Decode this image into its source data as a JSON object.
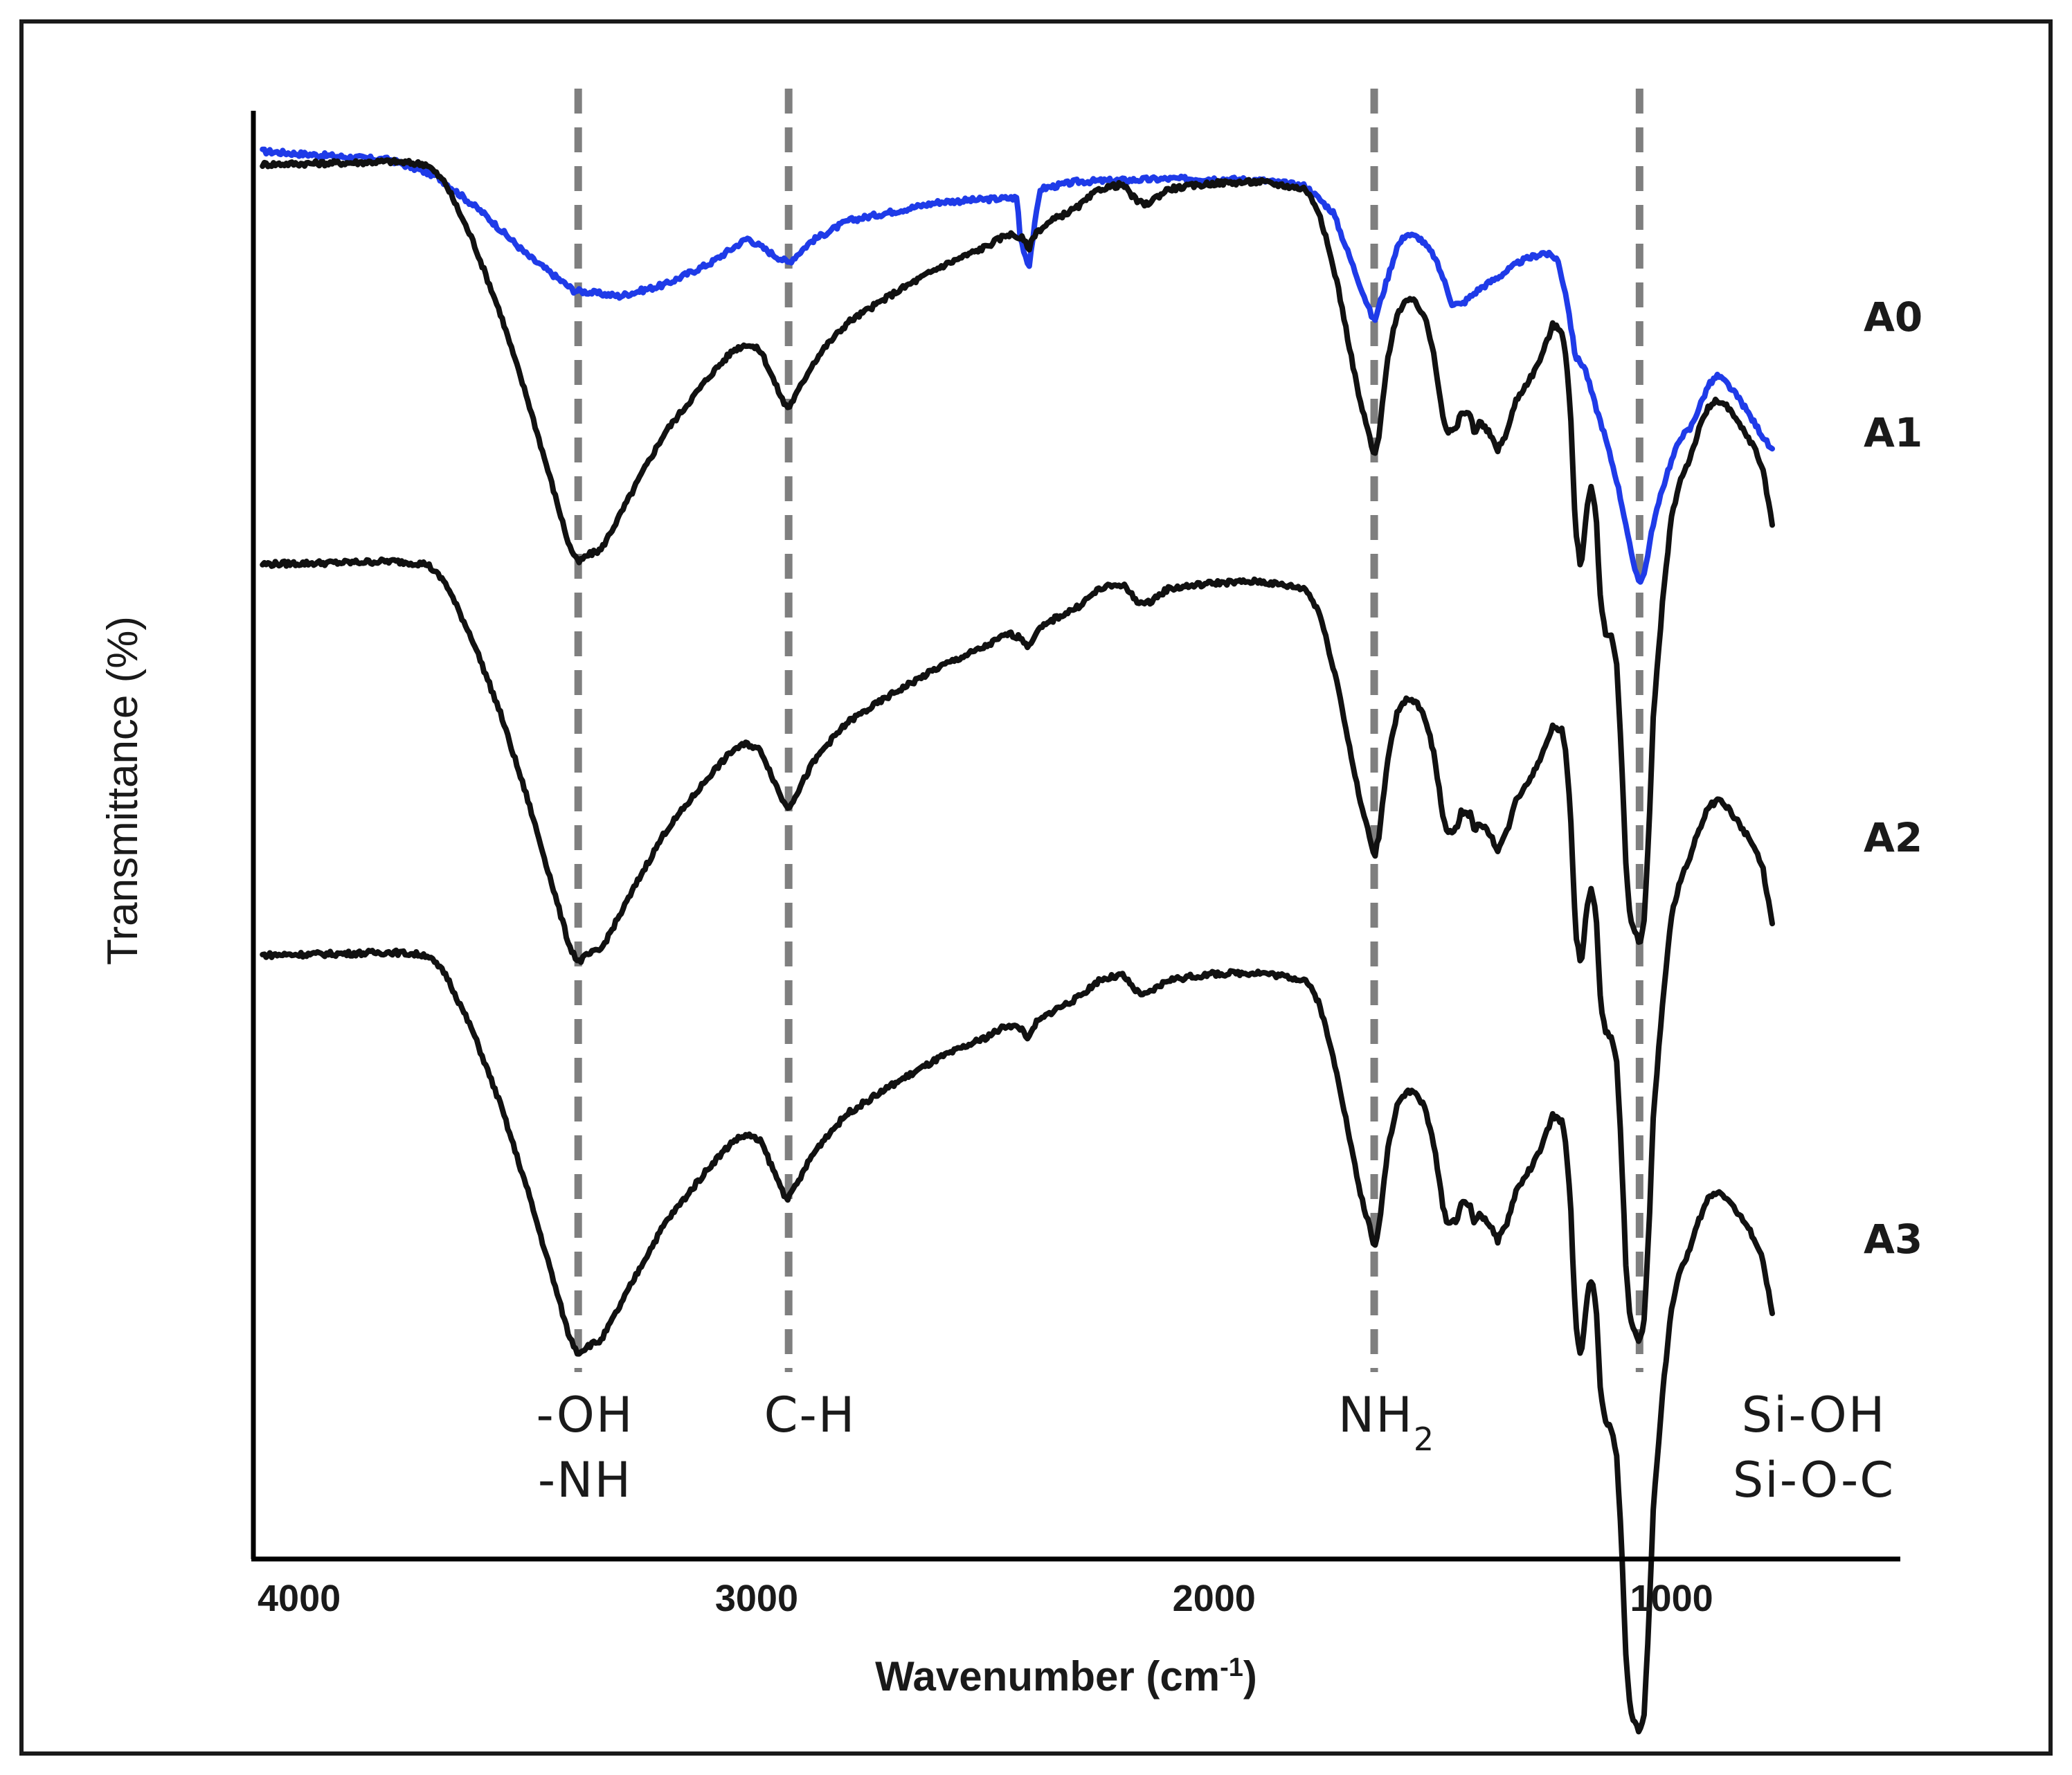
{
  "chart_data": {
    "type": "line",
    "title": "",
    "xlabel": "Wavenumber (cm",
    "xlabel_sup": "-1",
    "xlabel_end": ")",
    "ylabel": "Transmittance (%)",
    "xlim": [
      4100,
      500
    ],
    "x_reversed": true,
    "ylim": [
      0,
      100
    ],
    "ticks": [
      "4000",
      "3000",
      "2000",
      "1000"
    ],
    "tick_values": [
      4000,
      3000,
      2000,
      1000
    ],
    "grid": false,
    "legend": "labels at right end of each trace",
    "colors": {
      "A0": "#1f3be8",
      "A1": "#111111",
      "A2": "#111111",
      "A3": "#111111",
      "reference": "#7f7f7f"
    },
    "reference_lines": [
      3390,
      2930,
      1650,
      1070
    ],
    "annotations": [
      {
        "line1": "-OH",
        "line2": "-NH",
        "x": 3390
      },
      {
        "line1": "C-H",
        "line2": "",
        "x": 2930
      },
      {
        "line1": "NH",
        "sub": "2",
        "x": 1650
      },
      {
        "line1": "Si-OH",
        "line2": "Si-O-C",
        "x": 1070
      }
    ],
    "series": [
      {
        "name": "A0",
        "color": "#1f3be8",
        "offset": 0,
        "points": [
          [
            4080,
            97.2
          ],
          [
            3800,
            96.6
          ],
          [
            3700,
            95.5
          ],
          [
            3600,
            93
          ],
          [
            3500,
            90
          ],
          [
            3400,
            87.6
          ],
          [
            3300,
            87.2
          ],
          [
            3200,
            88
          ],
          [
            3100,
            89.5
          ],
          [
            3020,
            91.2
          ],
          [
            2960,
            90
          ],
          [
            2930,
            89.5
          ],
          [
            2880,
            91
          ],
          [
            2800,
            92.4
          ],
          [
            2600,
            93.7
          ],
          [
            2430,
            94
          ],
          [
            2425,
            91.4
          ],
          [
            2405,
            89.2
          ],
          [
            2395,
            91.5
          ],
          [
            2380,
            94.6
          ],
          [
            2300,
            95.1
          ],
          [
            2200,
            95.2
          ],
          [
            2100,
            95.3
          ],
          [
            2000,
            95.3
          ],
          [
            1900,
            95.2
          ],
          [
            1800,
            94.8
          ],
          [
            1740,
            93
          ],
          [
            1700,
            89.6
          ],
          [
            1660,
            86.2
          ],
          [
            1650,
            85.4
          ],
          [
            1630,
            87.5
          ],
          [
            1600,
            90.6
          ],
          [
            1580,
            91.5
          ],
          [
            1550,
            91.2
          ],
          [
            1520,
            90
          ],
          [
            1500,
            88.5
          ],
          [
            1480,
            86.7
          ],
          [
            1460,
            86.6
          ],
          [
            1420,
            87.7
          ],
          [
            1380,
            88.5
          ],
          [
            1330,
            89.6
          ],
          [
            1280,
            90.2
          ],
          [
            1250,
            89.8
          ],
          [
            1230,
            87.2
          ],
          [
            1210,
            83
          ],
          [
            1190,
            82.3
          ],
          [
            1170,
            80
          ],
          [
            1150,
            78
          ],
          [
            1120,
            74.5
          ],
          [
            1100,
            71.5
          ],
          [
            1085,
            68.8
          ],
          [
            1070,
            67.5
          ],
          [
            1060,
            68
          ],
          [
            1040,
            71.5
          ],
          [
            1010,
            75
          ],
          [
            980,
            77.5
          ],
          [
            960,
            78
          ],
          [
            940,
            79.5
          ],
          [
            920,
            81
          ],
          [
            900,
            81.7
          ],
          [
            880,
            81.2
          ],
          [
            850,
            80
          ],
          [
            820,
            78.5
          ],
          [
            780,
            76.5
          ]
        ]
      },
      {
        "name": "A1",
        "color": "#111111",
        "offset": 0,
        "points": [
          [
            4080,
            96.3
          ],
          [
            3900,
            96.4
          ],
          [
            3800,
            96.5
          ],
          [
            3720,
            96.3
          ],
          [
            3680,
            95
          ],
          [
            3620,
            91
          ],
          [
            3560,
            86
          ],
          [
            3500,
            80
          ],
          [
            3450,
            74.5
          ],
          [
            3410,
            70
          ],
          [
            3390,
            68.8
          ],
          [
            3370,
            69.3
          ],
          [
            3340,
            69.7
          ],
          [
            3300,
            72
          ],
          [
            3250,
            75
          ],
          [
            3200,
            77.8
          ],
          [
            3100,
            81.8
          ],
          [
            3050,
            83.5
          ],
          [
            3020,
            83.9
          ],
          [
            2990,
            83.4
          ],
          [
            2960,
            81.2
          ],
          [
            2940,
            79.8
          ],
          [
            2930,
            79.5
          ],
          [
            2910,
            80.6
          ],
          [
            2880,
            82.4
          ],
          [
            2850,
            83.7
          ],
          [
            2800,
            85.4
          ],
          [
            2700,
            87.4
          ],
          [
            2600,
            89.2
          ],
          [
            2500,
            90.6
          ],
          [
            2450,
            91.5
          ],
          [
            2420,
            91.2
          ],
          [
            2405,
            90.5
          ],
          [
            2390,
            91.6
          ],
          [
            2350,
            92.5
          ],
          [
            2300,
            93.3
          ],
          [
            2250,
            94.6
          ],
          [
            2220,
            94.8
          ],
          [
            2200,
            94.9
          ],
          [
            2170,
            93.8
          ],
          [
            2150,
            93.5
          ],
          [
            2100,
            94.6
          ],
          [
            2000,
            95
          ],
          [
            1900,
            95.1
          ],
          [
            1800,
            94.6
          ],
          [
            1770,
            93
          ],
          [
            1730,
            88
          ],
          [
            1700,
            83
          ],
          [
            1680,
            79.8
          ],
          [
            1660,
            77.5
          ],
          [
            1650,
            76
          ],
          [
            1640,
            77.5
          ],
          [
            1620,
            83
          ],
          [
            1600,
            86
          ],
          [
            1580,
            86.9
          ],
          [
            1560,
            86.8
          ],
          [
            1540,
            85.8
          ],
          [
            1520,
            83.3
          ],
          [
            1500,
            79
          ],
          [
            1490,
            77.8
          ],
          [
            1470,
            78
          ],
          [
            1460,
            79.2
          ],
          [
            1440,
            79
          ],
          [
            1430,
            77.7
          ],
          [
            1420,
            78.5
          ],
          [
            1400,
            77.8
          ],
          [
            1380,
            76.6
          ],
          [
            1360,
            77.8
          ],
          [
            1340,
            80
          ],
          [
            1320,
            81
          ],
          [
            1300,
            82
          ],
          [
            1280,
            83.4
          ],
          [
            1260,
            85.2
          ],
          [
            1240,
            84.8
          ],
          [
            1230,
            83
          ],
          [
            1220,
            78.5
          ],
          [
            1210,
            71
          ],
          [
            1200,
            68.8
          ],
          [
            1195,
            69.2
          ],
          [
            1185,
            72.8
          ],
          [
            1175,
            74
          ],
          [
            1165,
            72
          ],
          [
            1155,
            66
          ],
          [
            1145,
            64
          ],
          [
            1130,
            63.6
          ],
          [
            1120,
            61.8
          ],
          [
            1110,
            56
          ],
          [
            1100,
            48
          ],
          [
            1090,
            44
          ],
          [
            1080,
            43.3
          ],
          [
            1070,
            42.5
          ],
          [
            1060,
            44
          ],
          [
            1050,
            50
          ],
          [
            1040,
            58
          ],
          [
            1020,
            66
          ],
          [
            1000,
            72
          ],
          [
            980,
            74.6
          ],
          [
            960,
            76
          ],
          [
            940,
            78
          ],
          [
            920,
            79.5
          ],
          [
            900,
            80
          ],
          [
            880,
            79.6
          ],
          [
            860,
            78.7
          ],
          [
            840,
            77.8
          ],
          [
            820,
            76.8
          ],
          [
            800,
            75.2
          ],
          [
            780,
            71.5
          ]
        ]
      },
      {
        "name": "A2",
        "color": "#111111",
        "offset": -27.6
      },
      {
        "name": "A3",
        "color": "#111111",
        "offset": -54.6
      }
    ]
  }
}
